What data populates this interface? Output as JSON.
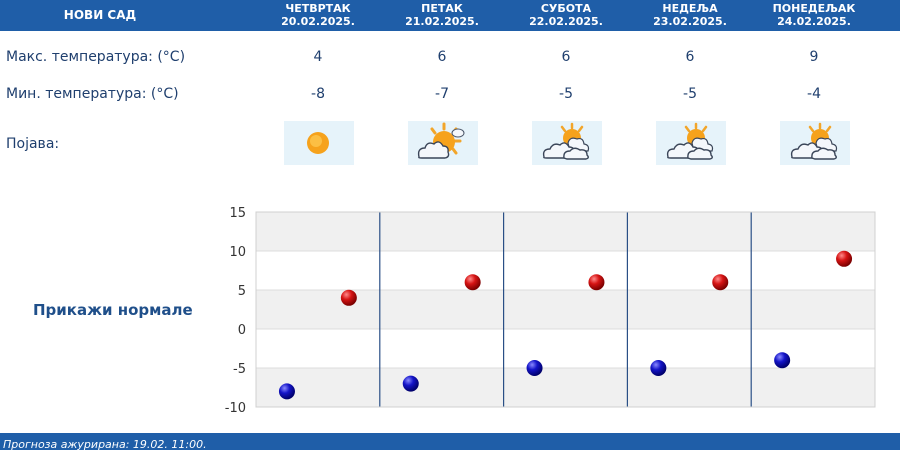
{
  "header": {
    "city": "НОВИ САД",
    "days": [
      {
        "name": "ЧЕТВРТАК",
        "date": "20.02.2025."
      },
      {
        "name": "ПЕТАК",
        "date": "21.02.2025."
      },
      {
        "name": "СУБОТА",
        "date": "22.02.2025."
      },
      {
        "name": "НЕДЕЉА",
        "date": "23.02.2025."
      },
      {
        "name": "ПОНЕДЕЉАК",
        "date": "24.02.2025."
      }
    ]
  },
  "rows": {
    "max_label": "Макс. температура: (°C)",
    "min_label": "Мин. температура: (°C)",
    "phenomenon_label": "Појава:",
    "max_values": [
      "4",
      "6",
      "6",
      "6",
      "9"
    ],
    "min_values": [
      "-8",
      "-7",
      "-5",
      "-5",
      "-4"
    ],
    "icons": [
      "sunny-icon",
      "partly-cloudy-icon",
      "mostly-cloudy-icon",
      "mostly-cloudy-icon",
      "mostly-cloudy-icon"
    ]
  },
  "normals_link": "Прикажи нормале",
  "chart_data": {
    "type": "scatter",
    "yticks": [
      "15",
      "10",
      "5",
      "0",
      "-5",
      "-10"
    ],
    "ylim": [
      -10,
      15
    ],
    "series": [
      {
        "values": [
          -8,
          -7,
          -5,
          -5,
          -4
        ],
        "color": "#1010b0"
      },
      {
        "values": [
          4,
          6,
          6,
          6,
          9
        ],
        "color": "#cc1010"
      }
    ],
    "grid": true
  },
  "footer": {
    "updated": "Прогноза ажурирана:  19.02. 11:00."
  },
  "colors": {
    "header_bg": "#1f5ea8",
    "min_dot": "#1010b0",
    "max_dot": "#cc1010",
    "band": "#f0f0f0"
  }
}
